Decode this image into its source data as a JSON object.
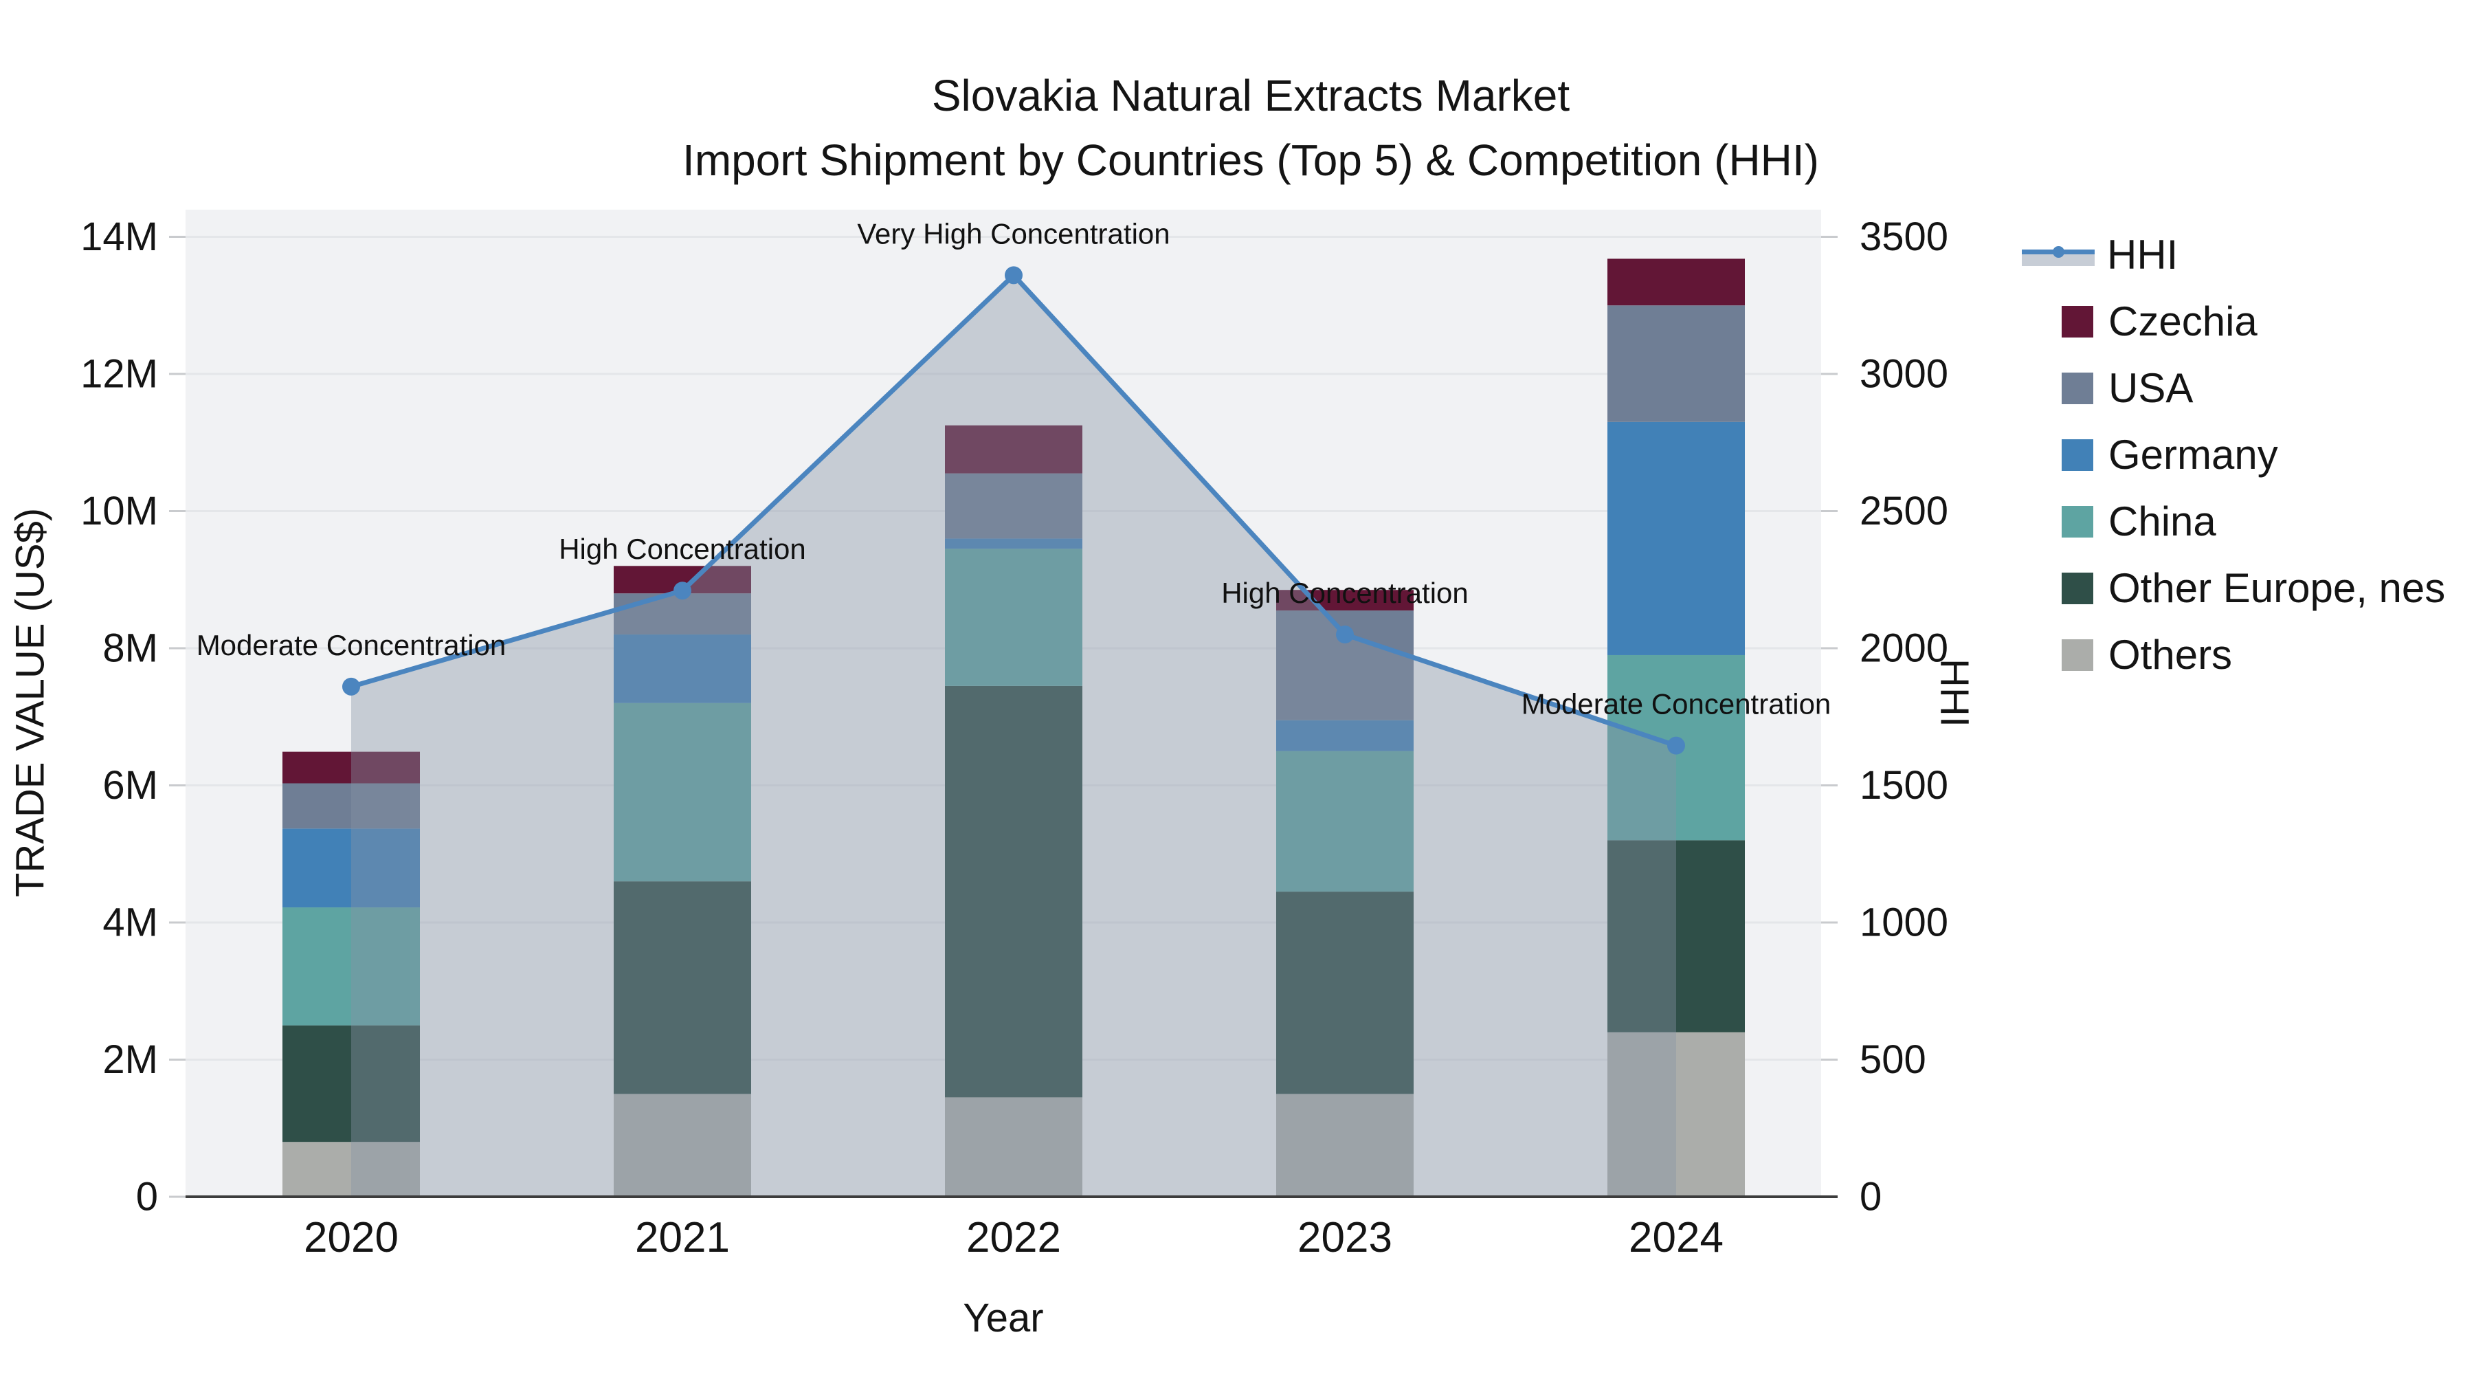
{
  "title": {
    "line1": "Slovakia Natural Extracts Market",
    "line2": "Import Shipment by Countries (Top 5) & Competition (HHI)"
  },
  "colors": {
    "hhi_line": "#4b85bf",
    "area_fill": "rgba(136,148,166,0.40)",
    "plot_bg": "#f1f2f4",
    "grid": "#e4e6e9",
    "axis_line": "#3d3d3d",
    "tick_mark": "#c9cbce",
    "czechia": "#621636",
    "usa": "#6f7e95",
    "germany": "#4181b7",
    "china": "#5ea4a2",
    "other_europe": "#2f4f48",
    "others": "#abadaa"
  },
  "legend": {
    "items": [
      {
        "id": "hhi",
        "label": "HHI",
        "type": "line",
        "color_key": "hhi_line"
      },
      {
        "id": "czechia",
        "label": "Czechia",
        "type": "square",
        "color_key": "czechia"
      },
      {
        "id": "usa",
        "label": "USA",
        "type": "square",
        "color_key": "usa"
      },
      {
        "id": "germany",
        "label": "Germany",
        "type": "square",
        "color_key": "germany"
      },
      {
        "id": "china",
        "label": "China",
        "type": "square",
        "color_key": "china"
      },
      {
        "id": "other_europe",
        "label": "Other Europe, nes",
        "type": "square",
        "color_key": "other_europe"
      },
      {
        "id": "others",
        "label": "Others",
        "type": "square",
        "color_key": "others"
      }
    ]
  },
  "chart_data": {
    "type": "combo_stacked_bar_line",
    "title": "Slovakia Natural Extracts Market — Import Shipment by Countries (Top 5) & Competition (HHI)",
    "xlabel": "Year",
    "ylabel_left": "TRADE VALUE (US$)",
    "ylabel_right": "HHI",
    "categories": [
      "2020",
      "2021",
      "2022",
      "2023",
      "2024"
    ],
    "unit": "million US$",
    "ylim_left_musd": [
      0,
      14.4
    ],
    "ylim_right_hhi": [
      0,
      3600
    ],
    "grid": true,
    "legend_position": "right",
    "series": [
      {
        "name": "Czechia",
        "color_key": "czechia",
        "values_musd": [
          0.46,
          0.4,
          0.7,
          0.3,
          0.68
        ]
      },
      {
        "name": "USA",
        "color_key": "usa",
        "values_musd": [
          0.66,
          0.6,
          0.95,
          1.6,
          1.7
        ]
      },
      {
        "name": "Germany",
        "color_key": "germany",
        "values_musd": [
          1.15,
          1.0,
          0.15,
          0.45,
          3.4
        ]
      },
      {
        "name": "China",
        "color_key": "china",
        "values_musd": [
          1.72,
          2.6,
          2.0,
          2.05,
          2.7
        ]
      },
      {
        "name": "Other Europe, nes",
        "color_key": "other_europe",
        "values_musd": [
          1.7,
          3.1,
          6.0,
          2.95,
          2.8
        ]
      },
      {
        "name": "Others",
        "color_key": "others",
        "values_musd": [
          0.8,
          1.5,
          1.45,
          1.5,
          2.4
        ]
      }
    ],
    "totals_musd": [
      6.49,
      9.2,
      11.25,
      8.85,
      13.68
    ],
    "hhi": {
      "name": "HHI",
      "values": [
        1860,
        2210,
        3360,
        2050,
        1645
      ],
      "annotations": [
        "Moderate Concentration",
        "High Concentration",
        "Very High Concentration",
        "High Concentration",
        "Moderate Concentration"
      ]
    },
    "left_ticks": [
      {
        "v": 0,
        "label": "0"
      },
      {
        "v": 2,
        "label": "2M"
      },
      {
        "v": 4,
        "label": "4M"
      },
      {
        "v": 6,
        "label": "6M"
      },
      {
        "v": 8,
        "label": "8M"
      },
      {
        "v": 10,
        "label": "10M"
      },
      {
        "v": 12,
        "label": "12M"
      },
      {
        "v": 14,
        "label": "14M"
      }
    ],
    "right_ticks": [
      {
        "v": 0,
        "label": "0"
      },
      {
        "v": 500,
        "label": "500"
      },
      {
        "v": 1000,
        "label": "1000"
      },
      {
        "v": 1500,
        "label": "1500"
      },
      {
        "v": 2000,
        "label": "2000"
      },
      {
        "v": 2500,
        "label": "2500"
      },
      {
        "v": 3000,
        "label": "3000"
      },
      {
        "v": 3500,
        "label": "3500"
      }
    ]
  }
}
